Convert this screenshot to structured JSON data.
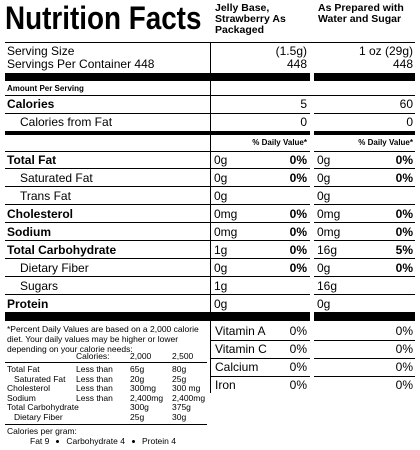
{
  "header": {
    "title": "Nutrition Facts",
    "columns": [
      "Jelly Base, Strawberry As Packaged",
      "As Prepared with Water and Sugar"
    ]
  },
  "serving": {
    "size_label": "Serving Size",
    "sizes": [
      "(1.5g)",
      "1 oz (29g)"
    ],
    "servings_label": "Servings Per Container 448",
    "servings": [
      "448",
      "448"
    ]
  },
  "amount_label": "Amount Per Serving",
  "calories": {
    "label": "Calories",
    "values": [
      "5",
      "60"
    ]
  },
  "calories_from_fat": {
    "label": "Calories from Fat",
    "values": [
      "0",
      "0"
    ]
  },
  "daily_value_header": [
    "% Daily Value*",
    "% Daily Value*"
  ],
  "nutrients": [
    {
      "label": "Total Fat",
      "cells": [
        [
          "0g",
          "0%"
        ],
        [
          "0g",
          "0%"
        ]
      ],
      "sub": [
        {
          "label": "Saturated Fat",
          "cells": [
            [
              "0g",
              "0%"
            ],
            [
              "0g",
              "0%"
            ]
          ]
        },
        {
          "label": "Trans Fat",
          "cells": [
            [
              "0g"
            ],
            [
              "0g"
            ]
          ]
        }
      ]
    },
    {
      "label": "Cholesterol",
      "cells": [
        [
          "0mg",
          "0%"
        ],
        [
          "0mg",
          "0%"
        ]
      ]
    },
    {
      "label": "Sodium",
      "cells": [
        [
          "0mg",
          "0%"
        ],
        [
          "0mg",
          "0%"
        ]
      ]
    },
    {
      "label": "Total Carbohydrate",
      "cells": [
        [
          "1g",
          "0%"
        ],
        [
          "16g",
          "5%"
        ]
      ],
      "sub": [
        {
          "label": "Dietary Fiber",
          "cells": [
            [
              "0g",
              "0%"
            ],
            [
              "0g",
              "0%"
            ]
          ]
        },
        {
          "label": "Sugars",
          "cells": [
            [
              "1g"
            ],
            [
              "16g"
            ]
          ]
        }
      ]
    },
    {
      "label": "Protein",
      "cells": [
        [
          "0g"
        ],
        [
          "0g"
        ]
      ]
    }
  ],
  "vitamins": [
    {
      "label": "Vitamin A",
      "values": [
        "0%",
        "0%"
      ]
    },
    {
      "label": "Vitamin C",
      "values": [
        "0%",
        "0%"
      ]
    },
    {
      "label": "Calcium",
      "values": [
        "0%",
        "0%"
      ]
    },
    {
      "label": "Iron",
      "values": [
        "0%",
        "0%"
      ]
    }
  ],
  "footnote": {
    "text": "*Percent Daily Values are based on a 2,000 calorie diet. Your daily values may be higher or lower depending on your calorie needs:",
    "calories_label": "Calories:",
    "calorie_levels": [
      "2,000",
      "2,500"
    ],
    "rows": [
      {
        "label": "Total Fat",
        "limit": "Less than",
        "values": [
          "65g",
          "80g"
        ],
        "sub": [
          {
            "label": "Saturated Fat",
            "limit": "Less than",
            "values": [
              "20g",
              "25g"
            ]
          }
        ]
      },
      {
        "label": "Cholesterol",
        "limit": "Less than",
        "values": [
          "300mg",
          "300 mg"
        ]
      },
      {
        "label": "Sodium",
        "limit": "Less than",
        "values": [
          "2,400mg",
          "2,400mg"
        ]
      },
      {
        "label": "Total Carbohydrate",
        "values": [
          "300g",
          "375g"
        ],
        "sub": [
          {
            "label": "Dietary Fiber",
            "values": [
              "25g",
              "30g"
            ]
          }
        ]
      }
    ],
    "calories_per_gram_label": "Calories per gram:",
    "calories_per_gram": [
      "Fat 9",
      "Carbohydrate 4",
      "Protein 4"
    ]
  }
}
